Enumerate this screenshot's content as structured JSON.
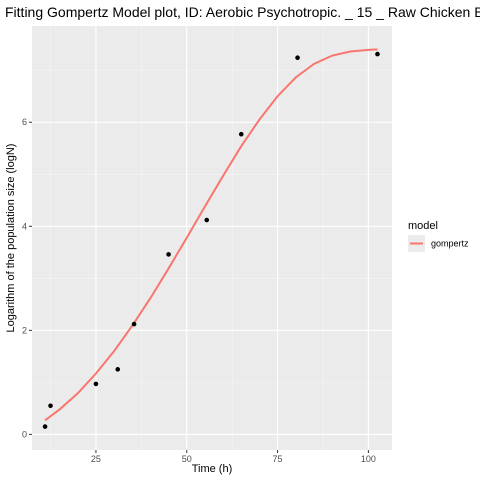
{
  "chart_data": {
    "type": "scatter",
    "title": "Fitting Gompertz Model plot, ID: Aerobic Psychotropic. _ 15 _ Raw Chicken B",
    "xlabel": "Time (h)",
    "ylabel": "Logarithm of the population size (logN)",
    "xlim": [
      7.4,
      106.5
    ],
    "ylim": [
      -0.3,
      7.85
    ],
    "x_ticks": [
      25,
      50,
      75,
      100
    ],
    "y_ticks": [
      0,
      2,
      4,
      6
    ],
    "x_tick_labels": [
      "25",
      "50",
      "75",
      "100"
    ],
    "y_tick_labels": [
      "0",
      "2",
      "4",
      "6"
    ],
    "grid": true,
    "points": {
      "x": [
        11,
        12.5,
        25,
        31,
        35.5,
        45,
        55.5,
        65,
        80.5,
        102.5
      ],
      "y": [
        0.15,
        0.55,
        0.97,
        1.25,
        2.12,
        3.46,
        4.12,
        5.77,
        7.24,
        7.31
      ]
    },
    "series": [
      {
        "name": "gompertz",
        "type": "line",
        "color": "#f8766d",
        "x": [
          11,
          15,
          20,
          25,
          30,
          35,
          40,
          45,
          50,
          55,
          60,
          65,
          70,
          75,
          80,
          85,
          90,
          95,
          100,
          102.5
        ],
        "y": [
          0.27,
          0.48,
          0.79,
          1.17,
          1.6,
          2.09,
          2.62,
          3.19,
          3.78,
          4.38,
          4.97,
          5.54,
          6.05,
          6.5,
          6.86,
          7.12,
          7.28,
          7.36,
          7.39,
          7.4
        ]
      }
    ],
    "legend": {
      "title": "model",
      "entries": [
        "gompertz"
      ],
      "placement": "right"
    }
  }
}
